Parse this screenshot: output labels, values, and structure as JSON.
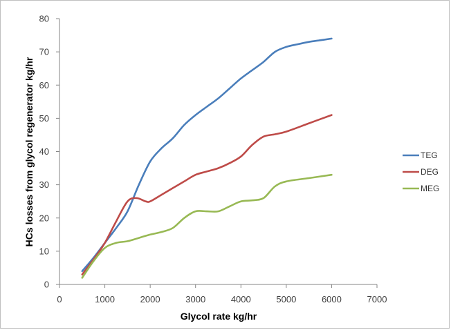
{
  "chart_data": {
    "type": "line",
    "title": "",
    "xlabel": "Glycol rate kg/hr",
    "ylabel": "HCs losses from glycol regenerator kg/hr",
    "xlim": [
      0,
      7000
    ],
    "ylim": [
      0,
      80
    ],
    "xticks": [
      "0",
      "1000",
      "2000",
      "3000",
      "4000",
      "5000",
      "6000",
      "7000"
    ],
    "yticks": [
      "0",
      "10",
      "20",
      "30",
      "40",
      "50",
      "60",
      "70",
      "80"
    ],
    "grid": false,
    "legend_position": "right",
    "series": [
      {
        "name": "TEG",
        "color": "#4a7ebb",
        "points": [
          [
            500,
            4
          ],
          [
            750,
            8
          ],
          [
            1000,
            12.5
          ],
          [
            1250,
            17
          ],
          [
            1500,
            22
          ],
          [
            1750,
            30
          ],
          [
            2000,
            37
          ],
          [
            2250,
            41
          ],
          [
            2500,
            44
          ],
          [
            2750,
            48
          ],
          [
            3000,
            51
          ],
          [
            3250,
            53.5
          ],
          [
            3500,
            56
          ],
          [
            3750,
            59
          ],
          [
            4000,
            62
          ],
          [
            4250,
            64.5
          ],
          [
            4500,
            67
          ],
          [
            4750,
            70
          ],
          [
            5000,
            71.5
          ],
          [
            5250,
            72.3
          ],
          [
            5500,
            73
          ],
          [
            5750,
            73.5
          ],
          [
            6000,
            74
          ]
        ]
      },
      {
        "name": "DEG",
        "color": "#be4b48",
        "points": [
          [
            500,
            3
          ],
          [
            750,
            7.5
          ],
          [
            1000,
            12.5
          ],
          [
            1250,
            19
          ],
          [
            1500,
            25
          ],
          [
            1700,
            26
          ],
          [
            1900,
            25
          ],
          [
            2000,
            25
          ],
          [
            2250,
            27
          ],
          [
            2500,
            29
          ],
          [
            2750,
            31
          ],
          [
            3000,
            33
          ],
          [
            3250,
            34
          ],
          [
            3500,
            35
          ],
          [
            3750,
            36.5
          ],
          [
            4000,
            38.5
          ],
          [
            4250,
            42
          ],
          [
            4500,
            44.5
          ],
          [
            4750,
            45.2
          ],
          [
            5000,
            46
          ],
          [
            5500,
            48.5
          ],
          [
            6000,
            51
          ]
        ]
      },
      {
        "name": "MEG",
        "color": "#98b954",
        "points": [
          [
            500,
            2
          ],
          [
            750,
            7
          ],
          [
            1000,
            11
          ],
          [
            1250,
            12.5
          ],
          [
            1500,
            13
          ],
          [
            1750,
            14
          ],
          [
            2000,
            15
          ],
          [
            2250,
            15.8
          ],
          [
            2500,
            17
          ],
          [
            2750,
            20
          ],
          [
            3000,
            22
          ],
          [
            3250,
            22
          ],
          [
            3500,
            22
          ],
          [
            3750,
            23.5
          ],
          [
            4000,
            25
          ],
          [
            4250,
            25.3
          ],
          [
            4500,
            26
          ],
          [
            4750,
            29.5
          ],
          [
            5000,
            31
          ],
          [
            5500,
            32
          ],
          [
            6000,
            33
          ]
        ]
      }
    ]
  }
}
